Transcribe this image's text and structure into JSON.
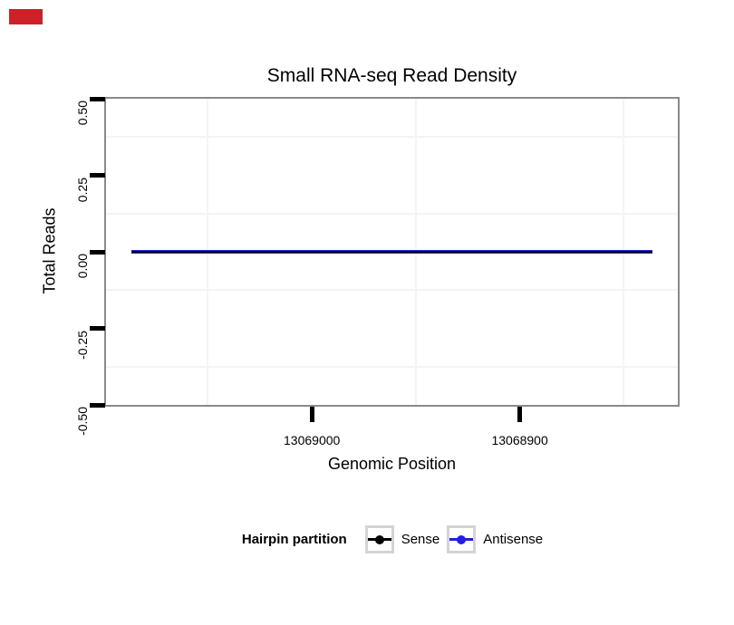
{
  "annotation": {
    "marker_color": "#cc2128"
  },
  "header": {
    "title": "Small RNA-seq Read Density"
  },
  "axes": {
    "x": {
      "label": "Genomic Position",
      "tick_labels": [
        "13069000",
        "13068900"
      ],
      "tick_values": [
        13069000,
        13068900
      ],
      "minor_values": [
        13069050,
        13068950,
        13068850
      ],
      "reversed": true
    },
    "y": {
      "label": "Total Reads",
      "tick_labels": [
        "0.50",
        "0.25",
        "0.00",
        "-0.25",
        "-0.50"
      ],
      "tick_values": [
        0.5,
        0.25,
        0.0,
        -0.25,
        -0.5
      ],
      "minor_values": [
        0.375,
        0.125,
        -0.125,
        -0.375
      ]
    }
  },
  "legend": {
    "title": "Hairpin partition",
    "items": [
      {
        "label": "Sense",
        "color": "#000000"
      },
      {
        "label": "Antisense",
        "color": "#2121d6"
      }
    ]
  },
  "chart_data": {
    "type": "line",
    "title": "Small RNA-seq Read Density",
    "xlabel": "Genomic Position",
    "ylabel": "Total Reads",
    "xlim": [
      13069099,
      13068824
    ],
    "ylim": [
      -0.5,
      0.5
    ],
    "x_axis_reversed": true,
    "x_ticks": [
      13069000,
      13068900
    ],
    "y_ticks": [
      0.5,
      0.25,
      0.0,
      -0.25,
      -0.5
    ],
    "grid": "minor-only",
    "panel_border_color": "#8a8a8a",
    "legend_position": "bottom",
    "series": [
      {
        "name": "Sense",
        "color": "#000000",
        "x": [
          13069087,
          13068836
        ],
        "y": [
          0,
          0
        ]
      },
      {
        "name": "Antisense",
        "color": "#2121d6",
        "x": [
          13069087,
          13068836
        ],
        "y": [
          0,
          0
        ]
      }
    ]
  }
}
